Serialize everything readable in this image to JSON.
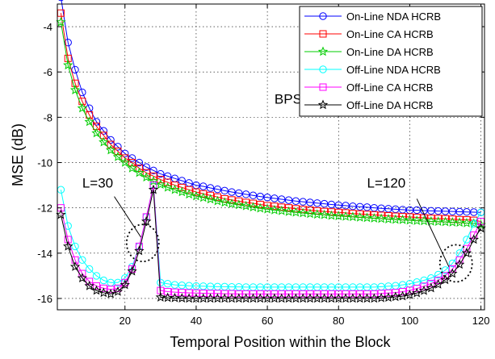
{
  "chart_data": {
    "type": "line",
    "title": "",
    "xlabel": "Temporal Position within the Block",
    "ylabel": "MSE (dB)",
    "xlim": [
      1,
      121
    ],
    "ylim": [
      -16.5,
      -3
    ],
    "xticks": [
      20,
      40,
      60,
      80,
      100,
      120
    ],
    "yticks": [
      -16,
      -14,
      -12,
      -10,
      -8,
      -6,
      -4
    ],
    "grid": true,
    "legend_position": "top-right",
    "annotations": [
      {
        "text": "BPSK"
      },
      {
        "text": "L=30"
      },
      {
        "text": "L=120"
      }
    ],
    "series": [
      {
        "name": "On-Line NDA HCRB",
        "color": "#0000ff",
        "marker": "circle",
        "x": [
          2,
          4,
          6,
          8,
          10,
          12,
          14,
          16,
          18,
          20,
          22,
          24,
          26,
          28,
          30,
          32,
          34,
          36,
          38,
          40,
          42,
          44,
          46,
          48,
          50,
          52,
          54,
          56,
          58,
          60,
          62,
          64,
          66,
          68,
          70,
          72,
          74,
          76,
          78,
          80,
          82,
          84,
          86,
          88,
          90,
          92,
          94,
          96,
          98,
          100,
          102,
          104,
          106,
          108,
          110,
          112,
          114,
          116,
          118,
          120
        ],
        "y": [
          -2.7,
          -4.7,
          -5.9,
          -6.9,
          -7.6,
          -8.2,
          -8.6,
          -9.0,
          -9.3,
          -9.6,
          -9.8,
          -10.0,
          -10.2,
          -10.35,
          -10.5,
          -10.6,
          -10.7,
          -10.8,
          -10.9,
          -11.0,
          -11.05,
          -11.12,
          -11.18,
          -11.24,
          -11.3,
          -11.35,
          -11.4,
          -11.45,
          -11.5,
          -11.54,
          -11.58,
          -11.62,
          -11.66,
          -11.7,
          -11.73,
          -11.76,
          -11.79,
          -11.82,
          -11.85,
          -11.88,
          -11.9,
          -11.93,
          -11.95,
          -11.97,
          -12.0,
          -12.02,
          -12.04,
          -12.06,
          -12.08,
          -12.1,
          -12.1,
          -12.12,
          -12.13,
          -12.14,
          -12.15,
          -12.16,
          -12.17,
          -12.18,
          -12.19,
          -12.2
        ]
      },
      {
        "name": "On-Line CA HCRB",
        "color": "#ff0000",
        "marker": "square",
        "x": [
          2,
          4,
          6,
          8,
          10,
          12,
          14,
          16,
          18,
          20,
          22,
          24,
          26,
          28,
          30,
          32,
          34,
          36,
          38,
          40,
          42,
          44,
          46,
          48,
          50,
          52,
          54,
          56,
          58,
          60,
          62,
          64,
          66,
          68,
          70,
          72,
          74,
          76,
          78,
          80,
          82,
          84,
          86,
          88,
          90,
          92,
          94,
          96,
          98,
          100,
          102,
          104,
          106,
          108,
          110,
          112,
          114,
          116,
          118,
          120
        ],
        "y": [
          -3.4,
          -5.4,
          -6.5,
          -7.3,
          -7.9,
          -8.4,
          -8.8,
          -9.2,
          -9.5,
          -9.8,
          -10.0,
          -10.25,
          -10.45,
          -10.6,
          -10.75,
          -10.87,
          -11.0,
          -11.1,
          -11.2,
          -11.3,
          -11.38,
          -11.45,
          -11.52,
          -11.6,
          -11.65,
          -11.7,
          -11.76,
          -11.8,
          -11.85,
          -11.9,
          -11.93,
          -11.97,
          -12.0,
          -12.04,
          -12.07,
          -12.1,
          -12.13,
          -12.16,
          -12.18,
          -12.2,
          -12.22,
          -12.25,
          -12.27,
          -12.29,
          -12.31,
          -12.33,
          -12.35,
          -12.37,
          -12.39,
          -12.4,
          -12.42,
          -12.44,
          -12.46,
          -12.47,
          -12.48,
          -12.5,
          -12.52,
          -12.53,
          -12.55,
          -12.6
        ]
      },
      {
        "name": "On-Line DA HCRB",
        "color": "#00cc00",
        "marker": "star",
        "x": [
          2,
          4,
          6,
          8,
          10,
          12,
          14,
          16,
          18,
          20,
          22,
          24,
          26,
          28,
          30,
          32,
          34,
          36,
          38,
          40,
          42,
          44,
          46,
          48,
          50,
          52,
          54,
          56,
          58,
          60,
          62,
          64,
          66,
          68,
          70,
          72,
          74,
          76,
          78,
          80,
          82,
          84,
          86,
          88,
          90,
          92,
          94,
          96,
          98,
          100,
          102,
          104,
          106,
          108,
          110,
          112,
          114,
          116,
          118,
          120
        ],
        "y": [
          -3.8,
          -5.7,
          -6.8,
          -7.6,
          -8.2,
          -8.7,
          -9.1,
          -9.45,
          -9.75,
          -10.0,
          -10.25,
          -10.45,
          -10.65,
          -10.82,
          -10.97,
          -11.1,
          -11.2,
          -11.3,
          -11.4,
          -11.48,
          -11.55,
          -11.62,
          -11.7,
          -11.76,
          -11.82,
          -11.87,
          -11.92,
          -11.97,
          -12.02,
          -12.06,
          -12.1,
          -12.13,
          -12.17,
          -12.2,
          -12.23,
          -12.26,
          -12.29,
          -12.31,
          -12.34,
          -12.36,
          -12.38,
          -12.4,
          -12.42,
          -12.44,
          -12.46,
          -12.48,
          -12.5,
          -12.52,
          -12.53,
          -12.55,
          -12.57,
          -12.58,
          -12.6,
          -12.61,
          -12.62,
          -12.64,
          -12.65,
          -12.67,
          -12.69,
          -12.75
        ]
      },
      {
        "name": "Off-Line NDA HCRB",
        "color": "#00ffff",
        "marker": "circle",
        "x": [
          2,
          4,
          6,
          8,
          10,
          12,
          14,
          16,
          18,
          20,
          22,
          24,
          26,
          28,
          30,
          32,
          34,
          36,
          38,
          40,
          42,
          44,
          46,
          48,
          50,
          52,
          54,
          56,
          58,
          60,
          62,
          64,
          66,
          68,
          70,
          72,
          74,
          76,
          78,
          80,
          82,
          84,
          86,
          88,
          90,
          92,
          94,
          96,
          98,
          100,
          102,
          104,
          106,
          108,
          110,
          112,
          114,
          116,
          118,
          120
        ],
        "y": [
          -11.2,
          -12.8,
          -13.7,
          -14.3,
          -14.7,
          -15.0,
          -15.2,
          -15.3,
          -15.3,
          -15.1,
          -14.6,
          -13.7,
          -12.4,
          -11.0,
          -15.3,
          -15.35,
          -15.4,
          -15.42,
          -15.44,
          -15.45,
          -15.46,
          -15.47,
          -15.48,
          -15.48,
          -15.49,
          -15.49,
          -15.5,
          -15.5,
          -15.5,
          -15.5,
          -15.5,
          -15.5,
          -15.5,
          -15.5,
          -15.5,
          -15.5,
          -15.5,
          -15.5,
          -15.5,
          -15.5,
          -15.5,
          -15.5,
          -15.5,
          -15.5,
          -15.5,
          -15.48,
          -15.46,
          -15.44,
          -15.4,
          -15.35,
          -15.28,
          -15.2,
          -15.1,
          -14.95,
          -14.75,
          -14.45,
          -14.0,
          -13.4,
          -12.7,
          -12.2
        ]
      },
      {
        "name": "Off-Line CA HCRB",
        "color": "#ff00ff",
        "marker": "square",
        "x": [
          2,
          4,
          6,
          8,
          10,
          12,
          14,
          16,
          18,
          20,
          22,
          24,
          26,
          28,
          30,
          32,
          34,
          36,
          38,
          40,
          42,
          44,
          46,
          48,
          50,
          52,
          54,
          56,
          58,
          60,
          62,
          64,
          66,
          68,
          70,
          72,
          74,
          76,
          78,
          80,
          82,
          84,
          86,
          88,
          90,
          92,
          94,
          96,
          98,
          100,
          102,
          104,
          106,
          108,
          110,
          112,
          114,
          116,
          118,
          120
        ],
        "y": [
          -12.0,
          -13.4,
          -14.3,
          -14.9,
          -15.25,
          -15.45,
          -15.55,
          -15.6,
          -15.55,
          -15.3,
          -14.7,
          -13.7,
          -12.4,
          -11.0,
          -15.65,
          -15.7,
          -15.72,
          -15.74,
          -15.75,
          -15.76,
          -15.77,
          -15.78,
          -15.78,
          -15.79,
          -15.79,
          -15.8,
          -15.8,
          -15.8,
          -15.8,
          -15.8,
          -15.8,
          -15.8,
          -15.8,
          -15.8,
          -15.8,
          -15.8,
          -15.8,
          -15.8,
          -15.8,
          -15.8,
          -15.8,
          -15.8,
          -15.8,
          -15.8,
          -15.8,
          -15.78,
          -15.76,
          -15.74,
          -15.7,
          -15.64,
          -15.56,
          -15.46,
          -15.34,
          -15.2,
          -15.0,
          -14.7,
          -14.3,
          -13.8,
          -13.2,
          -12.6
        ]
      },
      {
        "name": "Off-Line DA HCRB",
        "color": "#000000",
        "marker": "star",
        "x": [
          2,
          4,
          6,
          8,
          10,
          12,
          14,
          16,
          18,
          20,
          22,
          24,
          26,
          28,
          30,
          32,
          34,
          36,
          38,
          40,
          42,
          44,
          46,
          48,
          50,
          52,
          54,
          56,
          58,
          60,
          62,
          64,
          66,
          68,
          70,
          72,
          74,
          76,
          78,
          80,
          82,
          84,
          86,
          88,
          90,
          92,
          94,
          96,
          98,
          100,
          102,
          104,
          106,
          108,
          110,
          112,
          114,
          116,
          118,
          120
        ],
        "y": [
          -12.3,
          -13.7,
          -14.6,
          -15.1,
          -15.45,
          -15.65,
          -15.75,
          -15.8,
          -15.7,
          -15.4,
          -14.8,
          -13.9,
          -12.6,
          -11.2,
          -15.95,
          -15.97,
          -15.98,
          -15.99,
          -16.0,
          -16.0,
          -16.0,
          -16.0,
          -16.0,
          -16.0,
          -16.0,
          -16.0,
          -16.0,
          -16.0,
          -16.0,
          -16.0,
          -16.0,
          -16.0,
          -16.0,
          -16.0,
          -16.0,
          -16.0,
          -16.0,
          -16.0,
          -16.0,
          -16.0,
          -16.0,
          -16.0,
          -16.0,
          -16.0,
          -16.0,
          -15.98,
          -15.96,
          -15.93,
          -15.9,
          -15.84,
          -15.76,
          -15.66,
          -15.54,
          -15.38,
          -15.18,
          -14.9,
          -14.5,
          -14.0,
          -13.4,
          -12.9
        ]
      }
    ]
  }
}
